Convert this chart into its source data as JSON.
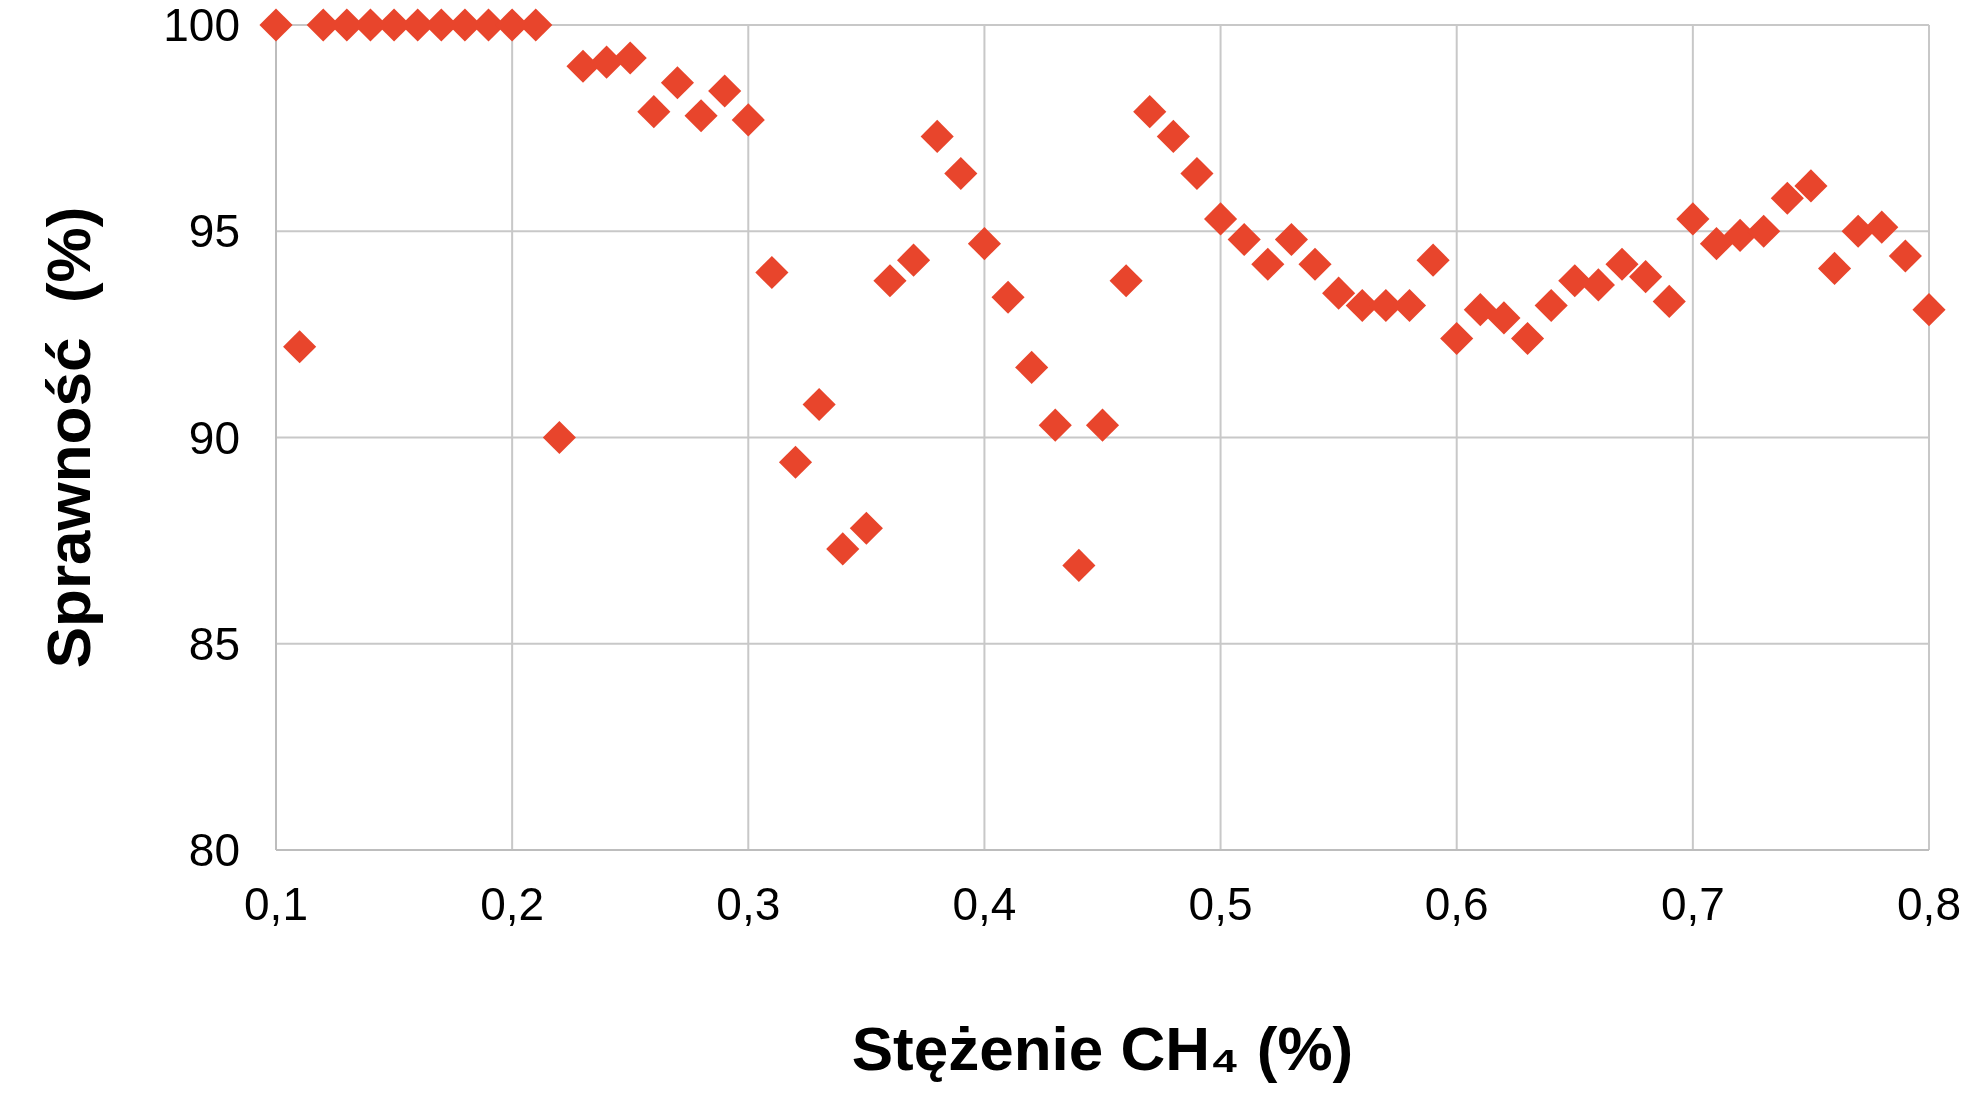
{
  "chart_data": {
    "type": "scatter",
    "xlabel": "Stężenie CH₄ (%)",
    "ylabel": "Sprawność  (%)",
    "marker": "diamond",
    "grid": true,
    "xlim": [
      0.1,
      0.8
    ],
    "ylim": [
      80,
      100
    ],
    "xticks": [
      {
        "value": 0.1,
        "label": "0,1"
      },
      {
        "value": 0.2,
        "label": "0,2"
      },
      {
        "value": 0.3,
        "label": "0,3"
      },
      {
        "value": 0.4,
        "label": "0,4"
      },
      {
        "value": 0.5,
        "label": "0,5"
      },
      {
        "value": 0.6,
        "label": "0,6"
      },
      {
        "value": 0.7,
        "label": "0,7"
      },
      {
        "value": 0.8,
        "label": "0,8"
      }
    ],
    "yticks": [
      80,
      85,
      90,
      95,
      100
    ],
    "series": [
      {
        "color": "#e8452c",
        "x": [
          0.1,
          0.11,
          0.12,
          0.13,
          0.14,
          0.15,
          0.16,
          0.17,
          0.18,
          0.19,
          0.2,
          0.21,
          0.22,
          0.23,
          0.24,
          0.25,
          0.26,
          0.27,
          0.28,
          0.29,
          0.3,
          0.31,
          0.32,
          0.33,
          0.34,
          0.35,
          0.36,
          0.37,
          0.38,
          0.39,
          0.4,
          0.41,
          0.42,
          0.43,
          0.44,
          0.45,
          0.46,
          0.47,
          0.48,
          0.49,
          0.5,
          0.51,
          0.52,
          0.53,
          0.54,
          0.55,
          0.56,
          0.57,
          0.58,
          0.59,
          0.6,
          0.61,
          0.62,
          0.63,
          0.64,
          0.65,
          0.66,
          0.67,
          0.68,
          0.69,
          0.7,
          0.71,
          0.72,
          0.73,
          0.74,
          0.75,
          0.76,
          0.77,
          0.78,
          0.79,
          0.8
        ],
        "values": [
          100,
          92.2,
          100,
          100,
          100,
          100,
          100,
          100,
          100,
          100,
          100,
          100,
          90.0,
          99.0,
          99.1,
          99.2,
          97.9,
          98.6,
          97.8,
          98.4,
          97.7,
          94.0,
          89.4,
          90.8,
          87.3,
          87.8,
          93.8,
          94.3,
          97.3,
          96.4,
          94.7,
          93.4,
          91.7,
          90.3,
          86.9,
          90.3,
          93.8,
          97.9,
          97.3,
          96.4,
          95.3,
          94.8,
          94.2,
          94.8,
          94.2,
          93.5,
          93.2,
          93.2,
          93.2,
          94.3,
          92.4,
          93.1,
          92.9,
          92.4,
          93.2,
          93.8,
          93.7,
          94.2,
          93.9,
          93.3,
          95.3,
          94.7,
          94.9,
          95.0,
          95.8,
          96.1,
          94.1,
          95.0,
          95.1,
          94.4,
          93.1
        ]
      }
    ]
  }
}
